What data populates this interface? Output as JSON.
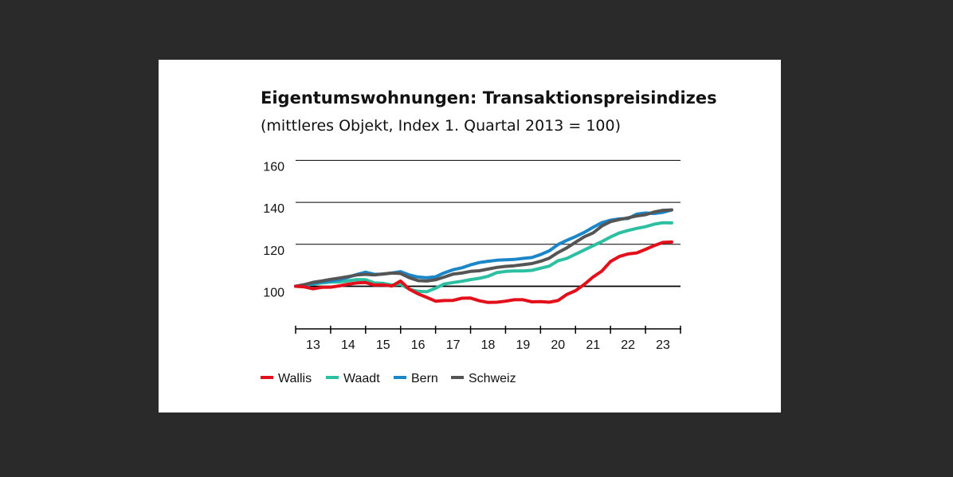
{
  "chart_data": {
    "type": "line",
    "title": "Eigentumswohnungen: Transaktionspreisindizes",
    "subtitle": "(mittleres Objekt, Index 1. Quartal 2013 = 100)",
    "xlabel": "",
    "ylabel": "",
    "ylim": [
      80,
      160
    ],
    "yticks": [
      100,
      120,
      140,
      160
    ],
    "x_tick_labels": [
      "13",
      "14",
      "15",
      "16",
      "17",
      "18",
      "19",
      "20",
      "21",
      "22",
      "23"
    ],
    "x_start": 2013.0,
    "x_step": 0.25,
    "grid": "horizontal",
    "legend_position": "bottom-left",
    "series": [
      {
        "name": "Wallis",
        "color": "#e3101b",
        "values": [
          100,
          99.7,
          98.8,
          99.5,
          99.6,
          100.2,
          101,
          101.6,
          101.8,
          100.6,
          100.7,
          100.1,
          102.5,
          98.6,
          96.4,
          94.7,
          92.9,
          93.2,
          93.3,
          94.3,
          94.4,
          93.1,
          92.3,
          92.4,
          92.9,
          93.6,
          93.6,
          92.6,
          92.7,
          92.4,
          93.2,
          96.1,
          97.9,
          100.9,
          104.4,
          107.2,
          111.8,
          114.2,
          115.4,
          115.9,
          117.6,
          119.4,
          120.9,
          121.1
        ]
      },
      {
        "name": "Waadt",
        "color": "#2dbfa1",
        "values": [
          100,
          100.4,
          101.1,
          101.6,
          102,
          102.1,
          102.6,
          103.2,
          103.1,
          101.6,
          101.4,
          100.6,
          101,
          98.6,
          97.6,
          97.4,
          99.1,
          101.1,
          101.8,
          102.4,
          103.2,
          103.8,
          104.8,
          106.5,
          107.1,
          107.3,
          107.3,
          107.6,
          108.6,
          109.6,
          112.2,
          113.3,
          115.3,
          117.3,
          119.3,
          121.3,
          123.5,
          125.4,
          126.6,
          127.6,
          128.4,
          129.6,
          130.3,
          130.2
        ]
      },
      {
        "name": "Bern",
        "color": "#1b87c9",
        "values": [
          100,
          100.5,
          101.4,
          102,
          102.5,
          103.1,
          104.3,
          105.6,
          106.7,
          105.7,
          105.8,
          106.3,
          107,
          105.4,
          104.4,
          104.1,
          104.5,
          106.4,
          107.9,
          108.8,
          110.2,
          111.3,
          111.9,
          112.4,
          112.6,
          112.8,
          113.3,
          113.7,
          115.1,
          116.9,
          119.9,
          121.9,
          123.7,
          125.7,
          128.1,
          130.3,
          131.5,
          132.1,
          132.3,
          134.4,
          134.9,
          134.7,
          135.2,
          136.4
        ]
      },
      {
        "name": "Schweiz",
        "color": "#555555",
        "values": [
          100,
          100.8,
          101.9,
          102.5,
          103.3,
          103.9,
          104.6,
          105.4,
          105.7,
          105.4,
          105.9,
          106.3,
          106.1,
          104.1,
          102.7,
          102.5,
          103.1,
          104.4,
          105.8,
          106.3,
          107.1,
          107.4,
          108.2,
          109,
          109.5,
          109.8,
          110.3,
          110.8,
          111.9,
          113.4,
          116.1,
          118.3,
          121,
          123.6,
          125.4,
          128.7,
          130.8,
          131.8,
          132.6,
          133.5,
          134.1,
          135.4,
          136.2,
          136.4
        ]
      }
    ]
  }
}
